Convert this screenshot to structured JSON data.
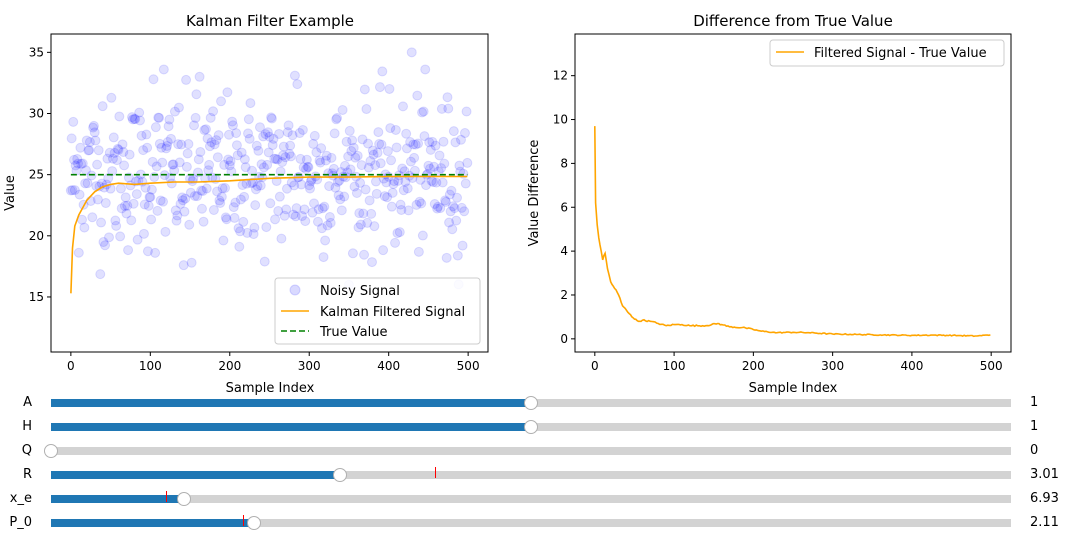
{
  "chart_data": [
    {
      "type": "scatter+line",
      "title": "Kalman Filter Example",
      "xlabel": "Sample Index",
      "ylabel": "Value",
      "xlim": [
        -25,
        525
      ],
      "ylim": [
        10.5,
        36.5
      ],
      "xticks": [
        0,
        100,
        200,
        300,
        400,
        500
      ],
      "yticks": [
        15,
        20,
        25,
        30,
        35
      ],
      "legend_location": "lower-right",
      "grid": false,
      "series": [
        {
          "name": "Noisy Signal",
          "kind": "scatter",
          "color": "#0000ff",
          "alpha": 0.12,
          "count": 500,
          "x_range": [
            0,
            499
          ],
          "center": 25.0,
          "spread_sd": 3.1,
          "samples": [
            [
              0,
              23.7
            ],
            [
              12,
              27.2
            ],
            [
              40,
              30.6
            ],
            [
              104,
              32.8
            ],
            [
              117,
              33.6
            ],
            [
              142,
              17.6
            ],
            [
              152,
              17.8
            ],
            [
              162,
              33.0
            ],
            [
              282,
              33.1
            ],
            [
              285,
              32.4
            ],
            [
              429,
              35.0
            ],
            [
              473,
              18.2
            ],
            [
              493,
              19.2
            ]
          ]
        },
        {
          "name": "Kalman Filtered Signal",
          "kind": "line",
          "color": "#ffa500",
          "points": [
            [
              0,
              15.3
            ],
            [
              2,
              19.0
            ],
            [
              5,
              20.8
            ],
            [
              10,
              21.7
            ],
            [
              20,
              22.9
            ],
            [
              30,
              23.6
            ],
            [
              40,
              24.0
            ],
            [
              50,
              24.2
            ],
            [
              60,
              24.3
            ],
            [
              80,
              24.2
            ],
            [
              100,
              24.3
            ],
            [
              130,
              24.4
            ],
            [
              160,
              24.4
            ],
            [
              200,
              24.5
            ],
            [
              250,
              24.7
            ],
            [
              300,
              24.8
            ],
            [
              350,
              24.8
            ],
            [
              400,
              24.85
            ],
            [
              450,
              24.85
            ],
            [
              499,
              24.85
            ]
          ]
        },
        {
          "name": "True Value",
          "kind": "dashed-line",
          "color": "#008000",
          "points": [
            [
              0,
              25
            ],
            [
              499,
              25
            ]
          ]
        }
      ]
    },
    {
      "type": "line",
      "title": "Difference from True Value",
      "xlabel": "Sample Index",
      "ylabel": "Value Difference",
      "xlim": [
        -25,
        525
      ],
      "ylim": [
        -0.6,
        13.9
      ],
      "xticks": [
        0,
        100,
        200,
        300,
        400,
        500
      ],
      "yticks": [
        0,
        2,
        4,
        6,
        8,
        10,
        12
      ],
      "legend_location": "upper-right",
      "grid": false,
      "series": [
        {
          "name": "Filtered Signal - True Value",
          "color": "#ffa500",
          "points": [
            [
              0,
              9.7
            ],
            [
              1,
              6.2
            ],
            [
              3,
              5.2
            ],
            [
              5,
              4.6
            ],
            [
              8,
              4.0
            ],
            [
              10,
              3.6
            ],
            [
              13,
              3.9
            ],
            [
              16,
              3.2
            ],
            [
              20,
              2.6
            ],
            [
              25,
              2.3
            ],
            [
              30,
              2.0
            ],
            [
              35,
              1.5
            ],
            [
              40,
              1.3
            ],
            [
              45,
              1.1
            ],
            [
              50,
              0.9
            ],
            [
              55,
              0.8
            ],
            [
              60,
              0.85
            ],
            [
              70,
              0.8
            ],
            [
              80,
              0.7
            ],
            [
              90,
              0.6
            ],
            [
              100,
              0.65
            ],
            [
              110,
              0.65
            ],
            [
              120,
              0.6
            ],
            [
              140,
              0.6
            ],
            [
              155,
              0.7
            ],
            [
              160,
              0.65
            ],
            [
              170,
              0.55
            ],
            [
              190,
              0.5
            ],
            [
              210,
              0.35
            ],
            [
              230,
              0.28
            ],
            [
              250,
              0.3
            ],
            [
              270,
              0.28
            ],
            [
              300,
              0.22
            ],
            [
              330,
              0.2
            ],
            [
              360,
              0.18
            ],
            [
              400,
              0.16
            ],
            [
              430,
              0.17
            ],
            [
              460,
              0.15
            ],
            [
              480,
              0.13
            ],
            [
              499,
              0.18
            ]
          ]
        }
      ]
    }
  ],
  "sliders": [
    {
      "label": "A",
      "value_text": "1",
      "fraction": 0.5
    },
    {
      "label": "H",
      "value_text": "1",
      "fraction": 0.5
    },
    {
      "label": "Q",
      "value_text": "0",
      "fraction": 0.0
    },
    {
      "label": "R",
      "value_text": "3.01",
      "fraction": 0.301,
      "initial_fraction": 0.4
    },
    {
      "label": "x_e",
      "value_text": "6.93",
      "fraction": 0.139,
      "initial_fraction": 0.12
    },
    {
      "label": "P_0",
      "value_text": "2.11",
      "fraction": 0.211,
      "initial_fraction": 0.2
    }
  ],
  "colors": {
    "slider_fill": "#1f77b4",
    "slider_track": "#d3d3d3",
    "initial_marker": "#ff0000"
  }
}
